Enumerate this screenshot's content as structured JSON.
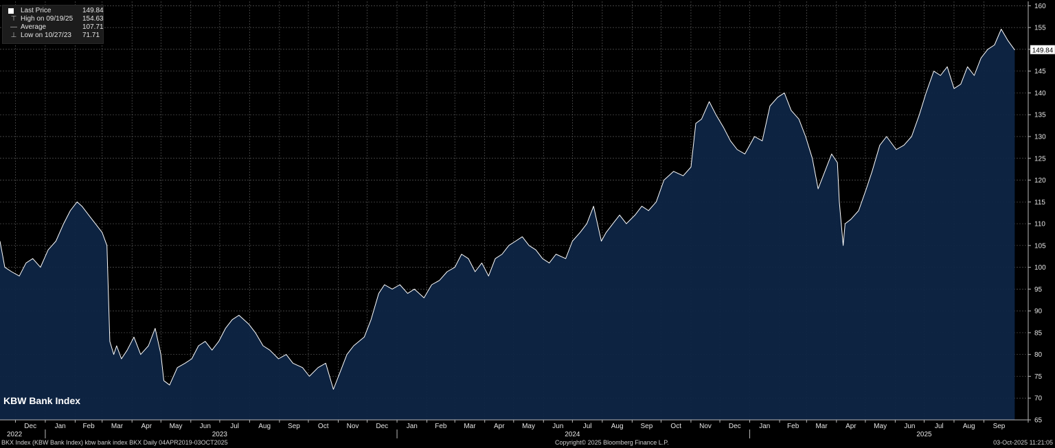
{
  "legend": {
    "last_label": "Last Price",
    "last_value": "149.84",
    "high_label": "High on 09/19/25",
    "high_value": "154.63",
    "avg_label": "Average",
    "avg_value": "107.71",
    "low_label": "Low on 10/27/23",
    "low_value": "71.71"
  },
  "chart_title": "KBW Bank Index",
  "footer": {
    "left": "BKX Index (KBW Bank Index) kbw bank index BKX Daily 04APR2019-03OCT2025",
    "center": "Copyright© 2025 Bloomberg Finance L.P.",
    "right": "03-Oct-2025 11:21:05"
  },
  "colors": {
    "background": "#000000",
    "area": "#0e2545",
    "line": "#ffffff",
    "grid": "#5a5a5a"
  },
  "chart_data": {
    "type": "area",
    "series": [
      {
        "x": [
          "2022-11-15",
          "2022-11-20",
          "2022-11-27",
          "2022-12-05",
          "2022-12-12",
          "2022-12-19",
          "2022-12-27",
          "2023-01-04",
          "2023-01-12",
          "2023-01-20",
          "2023-01-27",
          "2023-02-03",
          "2023-02-08",
          "2023-02-15",
          "2023-02-22",
          "2023-03-01",
          "2023-03-06",
          "2023-03-09",
          "2023-03-13",
          "2023-03-16",
          "2023-03-21",
          "2023-03-27",
          "2023-04-03",
          "2023-04-10",
          "2023-04-18",
          "2023-04-25",
          "2023-05-01",
          "2023-05-04",
          "2023-05-10",
          "2023-05-18",
          "2023-05-26",
          "2023-06-02",
          "2023-06-09",
          "2023-06-16",
          "2023-06-23",
          "2023-06-30",
          "2023-07-07",
          "2023-07-14",
          "2023-07-21",
          "2023-07-31",
          "2023-08-07",
          "2023-08-15",
          "2023-08-22",
          "2023-08-31",
          "2023-09-08",
          "2023-09-15",
          "2023-09-25",
          "2023-10-02",
          "2023-10-11",
          "2023-10-19",
          "2023-10-27",
          "2023-11-03",
          "2023-11-10",
          "2023-11-17",
          "2023-11-28",
          "2023-12-05",
          "2023-12-13",
          "2023-12-19",
          "2023-12-27",
          "2024-01-04",
          "2024-01-12",
          "2024-01-19",
          "2024-01-29",
          "2024-02-06",
          "2024-02-14",
          "2024-02-22",
          "2024-03-01",
          "2024-03-08",
          "2024-03-15",
          "2024-03-22",
          "2024-03-29",
          "2024-04-05",
          "2024-04-12",
          "2024-04-19",
          "2024-04-26",
          "2024-05-03",
          "2024-05-10",
          "2024-05-17",
          "2024-05-24",
          "2024-05-31",
          "2024-06-07",
          "2024-06-14",
          "2024-06-24",
          "2024-07-01",
          "2024-07-09",
          "2024-07-16",
          "2024-07-23",
          "2024-07-31",
          "2024-08-05",
          "2024-08-12",
          "2024-08-19",
          "2024-08-26",
          "2024-09-04",
          "2024-09-11",
          "2024-09-18",
          "2024-09-26",
          "2024-10-04",
          "2024-10-14",
          "2024-10-24",
          "2024-11-01",
          "2024-11-06",
          "2024-11-12",
          "2024-11-20",
          "2024-11-27",
          "2024-12-05",
          "2024-12-12",
          "2024-12-19",
          "2024-12-27",
          "2025-01-06",
          "2025-01-14",
          "2025-01-22",
          "2025-01-30",
          "2025-02-06",
          "2025-02-13",
          "2025-02-21",
          "2025-02-28",
          "2025-03-07",
          "2025-03-13",
          "2025-03-20",
          "2025-03-27",
          "2025-04-02",
          "2025-04-04",
          "2025-04-08",
          "2025-04-10",
          "2025-04-16",
          "2025-04-24",
          "2025-05-02",
          "2025-05-08",
          "2025-05-16",
          "2025-05-23",
          "2025-06-02",
          "2025-06-10",
          "2025-06-18",
          "2025-06-26",
          "2025-07-03",
          "2025-07-11",
          "2025-07-18",
          "2025-07-25",
          "2025-08-01",
          "2025-08-08",
          "2025-08-15",
          "2025-08-22",
          "2025-08-29",
          "2025-09-05",
          "2025-09-12",
          "2025-09-19",
          "2025-09-26",
          "2025-10-03"
        ],
        "y": [
          106,
          100,
          99,
          98,
          101,
          102,
          100,
          104,
          106,
          110,
          113,
          115,
          114,
          112,
          110,
          108,
          105,
          83,
          80,
          82,
          79,
          81,
          84,
          80,
          82,
          86,
          80,
          74,
          73,
          77,
          78,
          79,
          82,
          83,
          81,
          83,
          86,
          88,
          89,
          87,
          85,
          82,
          81,
          79,
          80,
          78,
          77,
          75,
          77,
          78,
          72,
          76,
          80,
          82,
          84,
          88,
          94,
          96,
          95,
          96,
          94,
          95,
          93,
          96,
          97,
          99,
          100,
          103,
          102,
          99,
          101,
          98,
          102,
          103,
          105,
          106,
          107,
          105,
          104,
          102,
          101,
          103,
          102,
          106,
          108,
          110,
          114,
          106,
          108,
          110,
          112,
          110,
          112,
          114,
          113,
          115,
          120,
          122,
          121,
          123,
          133,
          134,
          138,
          135,
          132,
          129,
          127,
          126,
          130,
          129,
          137,
          139,
          140,
          136,
          134,
          130,
          125,
          118,
          122,
          126,
          124,
          115,
          105,
          110,
          111,
          113,
          118,
          122,
          128,
          130,
          127,
          128,
          130,
          135,
          140,
          145,
          144,
          146,
          141,
          142,
          146,
          144,
          148,
          150,
          151,
          154.63,
          152,
          149.84
        ]
      }
    ],
    "ylim": [
      65,
      161
    ],
    "y_ticks": [
      "65",
      "70",
      "75",
      "80",
      "85",
      "90",
      "95",
      "100",
      "105",
      "110",
      "115",
      "120",
      "125",
      "130",
      "135",
      "140",
      "145",
      "150",
      "155",
      "160"
    ],
    "x_month_labels": [
      "Dec",
      "Jan",
      "Feb",
      "Mar",
      "Apr",
      "May",
      "Jun",
      "Jul",
      "Aug",
      "Sep",
      "Oct",
      "Nov",
      "Dec",
      "Jan",
      "Feb",
      "Mar",
      "Apr",
      "May",
      "Jun",
      "Jul",
      "Aug",
      "Sep",
      "Oct",
      "Nov",
      "Dec",
      "Jan",
      "Feb",
      "Mar",
      "Apr",
      "May",
      "Jun",
      "Jul",
      "Aug",
      "Sep"
    ],
    "x_month_dates": [
      "2022-12-01",
      "2023-01-01",
      "2023-02-01",
      "2023-03-01",
      "2023-04-01",
      "2023-05-01",
      "2023-06-01",
      "2023-07-01",
      "2023-08-01",
      "2023-09-01",
      "2023-10-01",
      "2023-11-01",
      "2023-12-01",
      "2024-01-01",
      "2024-02-01",
      "2024-03-01",
      "2024-04-01",
      "2024-05-01",
      "2024-06-01",
      "2024-07-01",
      "2024-08-01",
      "2024-09-01",
      "2024-10-01",
      "2024-11-01",
      "2024-12-01",
      "2025-01-01",
      "2025-02-01",
      "2025-03-01",
      "2025-04-01",
      "2025-05-01",
      "2025-06-01",
      "2025-07-01",
      "2025-08-01",
      "2025-09-01"
    ],
    "x_year_labels": [
      "2022",
      "2023",
      "2024",
      "2025"
    ],
    "x_year_dates": [
      "2022-11-15",
      "2023-07-01",
      "2024-07-01",
      "2025-07-01"
    ],
    "last_price_tag": "149.84",
    "grid": true
  }
}
